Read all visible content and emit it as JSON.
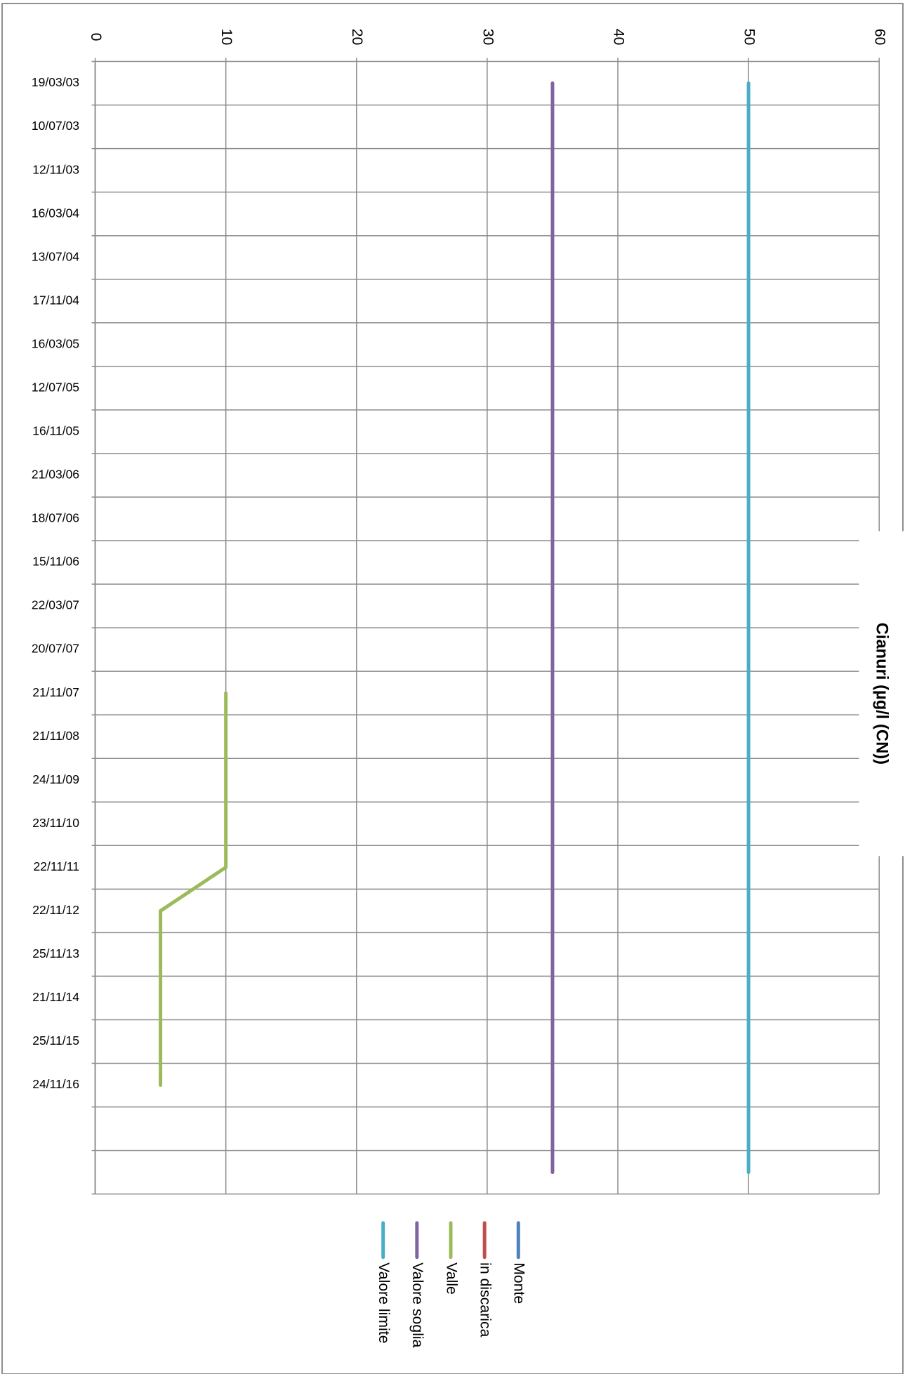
{
  "chart_data": {
    "type": "line",
    "orientation": "horizontal",
    "title": "Cianuri (µg/l (CN))",
    "categories": [
      "19/03/03",
      "10/07/03",
      "12/11/03",
      "16/03/04",
      "13/07/04",
      "17/11/04",
      "16/03/05",
      "12/07/05",
      "16/11/05",
      "21/03/06",
      "18/07/06",
      "15/11/06",
      "22/03/07",
      "20/07/07",
      "21/11/07",
      "21/11/08",
      "24/11/09",
      "23/11/10",
      "22/11/11",
      "22/11/12",
      "25/11/13",
      "21/11/14",
      "25/11/15",
      "24/11/16",
      null,
      null
    ],
    "series": [
      {
        "name": "Monte",
        "color": "#4f81bd",
        "values": [
          null,
          null,
          null,
          null,
          null,
          null,
          null,
          null,
          null,
          null,
          null,
          null,
          null,
          null,
          null,
          null,
          null,
          null,
          null,
          null,
          null,
          null,
          null,
          null,
          null,
          null
        ]
      },
      {
        "name": "in discarica",
        "color": "#c0504d",
        "values": [
          null,
          null,
          null,
          null,
          null,
          null,
          null,
          null,
          null,
          null,
          null,
          null,
          null,
          null,
          null,
          null,
          null,
          null,
          null,
          null,
          null,
          null,
          null,
          null,
          null,
          null
        ]
      },
      {
        "name": "Valle",
        "color": "#9bbb59",
        "values": [
          null,
          null,
          null,
          null,
          null,
          null,
          null,
          null,
          null,
          null,
          null,
          null,
          null,
          null,
          10,
          10,
          10,
          10,
          10,
          5,
          5,
          5,
          5,
          5,
          null,
          null
        ]
      },
      {
        "name": "Valore soglia",
        "color": "#8064a2",
        "values": [
          35,
          35,
          35,
          35,
          35,
          35,
          35,
          35,
          35,
          35,
          35,
          35,
          35,
          35,
          35,
          35,
          35,
          35,
          35,
          35,
          35,
          35,
          35,
          35,
          35,
          35
        ]
      },
      {
        "name": "Valore limite",
        "color": "#4bacc6",
        "values": [
          50,
          50,
          50,
          50,
          50,
          50,
          50,
          50,
          50,
          50,
          50,
          50,
          50,
          50,
          50,
          50,
          50,
          50,
          50,
          50,
          50,
          50,
          50,
          50,
          50,
          50
        ]
      }
    ],
    "ylim": [
      0,
      60
    ],
    "yticks": [
      0,
      10,
      20,
      30,
      40,
      50,
      60
    ],
    "grid": true
  }
}
